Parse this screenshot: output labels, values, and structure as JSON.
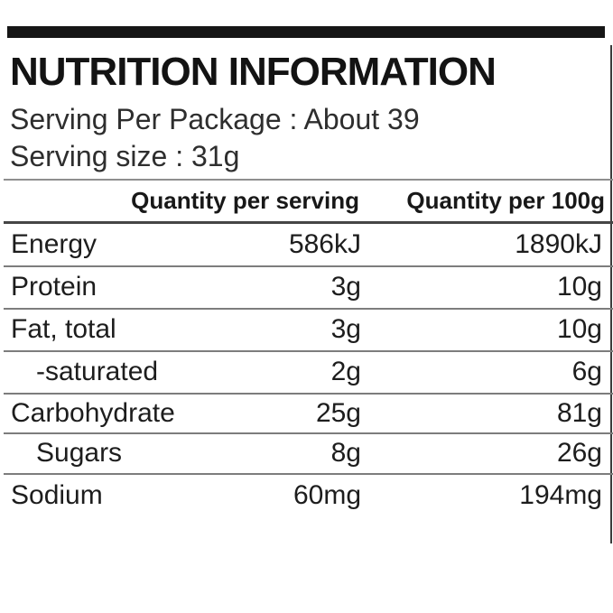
{
  "label": {
    "title": "NUTRITION INFORMATION",
    "serving_per_package": "Serving Per Package : About 39",
    "serving_size": "Serving size : 31g",
    "table": {
      "columns": {
        "per_serving": "Quantity per serving",
        "per_100g": "Quantity per 100g"
      },
      "rows": [
        {
          "name": "Energy",
          "indent": false,
          "per_serving": "586kJ",
          "per_100g": "1890kJ"
        },
        {
          "name": "Protein",
          "indent": false,
          "per_serving": "3g",
          "per_100g": "10g"
        },
        {
          "name": "Fat, total",
          "indent": false,
          "per_serving": "3g",
          "per_100g": "10g"
        },
        {
          "name": "-saturated",
          "indent": true,
          "per_serving": "2g",
          "per_100g": "6g"
        },
        {
          "name": "Carbohydrate",
          "indent": false,
          "per_serving": "25g",
          "per_100g": "81g"
        },
        {
          "name": "Sugars",
          "indent": true,
          "per_serving": "8g",
          "per_100g": "26g"
        },
        {
          "name": "Sodium",
          "indent": false,
          "per_serving": "60mg",
          "per_100g": "194mg"
        }
      ]
    },
    "colors": {
      "bar": "#161616",
      "text": "#1d1d1d",
      "rule_light": "#8f8f8f",
      "rule_dark": "#454545",
      "rule_mid": "#7d7d7d"
    }
  }
}
